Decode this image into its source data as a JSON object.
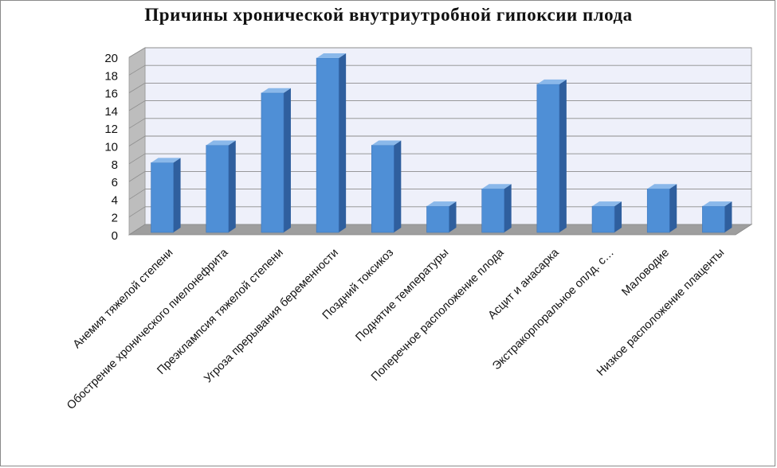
{
  "chart_data": {
    "type": "bar",
    "title": "Причины хронической внутриутробной гипоксии плода",
    "xlabel": "",
    "ylabel": "",
    "ylim": [
      0,
      20
    ],
    "yticks": [
      0,
      2,
      4,
      6,
      8,
      10,
      12,
      14,
      16,
      18,
      20
    ],
    "grid": true,
    "legend": "none",
    "style": "3d-column",
    "categories": [
      "Анемия тяжелой степени",
      "Обострение хронического пиелонефрита",
      "Преэклампсия тяжелой степени",
      "Угроза прерывания беременности",
      "Поздний токсикоз",
      "Поднятие температуры",
      "Поперечное расположение плода",
      "Асцит и анасарка",
      "Экстракорпоральное оплд. с…",
      "Маловодие",
      "Низкое расположение плаценты"
    ],
    "values": [
      8,
      10,
      16,
      20,
      10,
      3,
      5,
      17,
      3,
      5,
      3
    ],
    "colors": {
      "bar_front": "#4f8fd6",
      "bar_side": "#2f5f9e",
      "bar_top": "#8ab8ea",
      "wall": "#eef0fa",
      "side_wall": "#bdbdbd",
      "floor": "#9e9e9e",
      "grid": "#8c8c8c"
    }
  }
}
